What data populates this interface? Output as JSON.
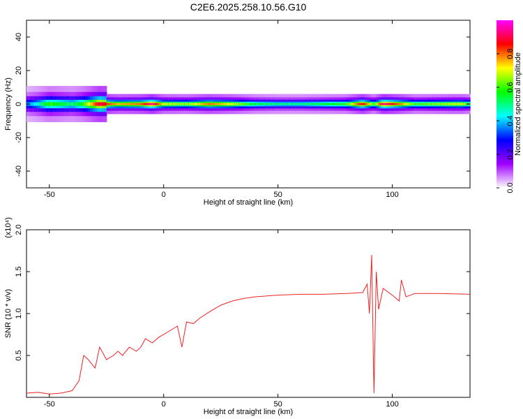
{
  "title": "C2E6.2025.258.10.56.G10",
  "chart_data": [
    {
      "type": "heatmap",
      "xlabel": "Height of straight line (km)",
      "ylabel": "Frequency (Hz)",
      "xlim": [
        -60,
        134
      ],
      "ylim": [
        -50,
        50
      ],
      "xticks": [
        "-50",
        "0",
        "50",
        "100"
      ],
      "yticks": [
        "-40",
        "-20",
        "0",
        "20",
        "40"
      ],
      "colorbar": {
        "label": "Normalized spectral amplitude",
        "range": [
          0,
          1
        ],
        "ticks": [
          "0.0",
          "0.2",
          "0.4",
          "0.6",
          "0.8"
        ],
        "colors": [
          "#ffffff",
          "#a000ff",
          "#0000ff",
          "#00ffff",
          "#00ff00",
          "#ffff00",
          "#ff0000",
          "#ff00ff"
        ]
      },
      "ridge": [
        {
          "x": -60,
          "amp": 0.35
        },
        {
          "x": -55,
          "amp": 0.45
        },
        {
          "x": -50,
          "amp": 0.6
        },
        {
          "x": -45,
          "amp": 0.55
        },
        {
          "x": -40,
          "amp": 0.5
        },
        {
          "x": -35,
          "amp": 0.6
        },
        {
          "x": -28,
          "amp": 0.9
        },
        {
          "x": -20,
          "amp": 0.75
        },
        {
          "x": -10,
          "amp": 0.8
        },
        {
          "x": -5,
          "amp": 0.95
        },
        {
          "x": 0,
          "amp": 0.7
        },
        {
          "x": 10,
          "amp": 0.65
        },
        {
          "x": 20,
          "amp": 0.8
        },
        {
          "x": 30,
          "amp": 0.7
        },
        {
          "x": 40,
          "amp": 0.55
        },
        {
          "x": 50,
          "amp": 0.5
        },
        {
          "x": 60,
          "amp": 0.5
        },
        {
          "x": 70,
          "amp": 0.55
        },
        {
          "x": 80,
          "amp": 0.6
        },
        {
          "x": 87,
          "amp": 0.9
        },
        {
          "x": 92,
          "amp": 0.6
        },
        {
          "x": 96,
          "amp": 0.95
        },
        {
          "x": 103,
          "amp": 0.8
        },
        {
          "x": 110,
          "amp": 0.6
        },
        {
          "x": 120,
          "amp": 0.65
        },
        {
          "x": 130,
          "amp": 0.7
        },
        {
          "x": 134,
          "amp": 0.6
        }
      ]
    },
    {
      "type": "line",
      "xlabel": "Height of straight line (km)",
      "ylabel": "SNR (10 * v/v)",
      "yscale_label": "(x10⁴)",
      "xlim": [
        -60,
        134
      ],
      "ylim": [
        0,
        2.0
      ],
      "xticks": [
        "-50",
        "0",
        "50",
        "100"
      ],
      "yticks": [
        "0.5",
        "1.0",
        "1.5",
        "2.0"
      ],
      "color": "#ee2222",
      "series": [
        {
          "points": [
            [
              -60,
              0.05
            ],
            [
              -55,
              0.06
            ],
            [
              -50,
              0.04
            ],
            [
              -45,
              0.05
            ],
            [
              -40,
              0.08
            ],
            [
              -37,
              0.2
            ],
            [
              -35,
              0.5
            ],
            [
              -33,
              0.45
            ],
            [
              -30,
              0.35
            ],
            [
              -28,
              0.6
            ],
            [
              -25,
              0.45
            ],
            [
              -22,
              0.5
            ],
            [
              -20,
              0.55
            ],
            [
              -18,
              0.5
            ],
            [
              -15,
              0.6
            ],
            [
              -12,
              0.55
            ],
            [
              -10,
              0.6
            ],
            [
              -8,
              0.7
            ],
            [
              -5,
              0.65
            ],
            [
              -2,
              0.72
            ],
            [
              0,
              0.75
            ],
            [
              3,
              0.8
            ],
            [
              6,
              0.85
            ],
            [
              8,
              0.6
            ],
            [
              10,
              0.9
            ],
            [
              13,
              0.88
            ],
            [
              16,
              0.95
            ],
            [
              20,
              1.02
            ],
            [
              25,
              1.1
            ],
            [
              30,
              1.15
            ],
            [
              35,
              1.18
            ],
            [
              40,
              1.2
            ],
            [
              50,
              1.22
            ],
            [
              60,
              1.23
            ],
            [
              70,
              1.23
            ],
            [
              80,
              1.24
            ],
            [
              87,
              1.25
            ],
            [
              89,
              1.35
            ],
            [
              90,
              1.0
            ],
            [
              91,
              1.7
            ],
            [
              92,
              0.05
            ],
            [
              93,
              1.5
            ],
            [
              94,
              1.05
            ],
            [
              96,
              1.3
            ],
            [
              100,
              1.22
            ],
            [
              103,
              1.15
            ],
            [
              104,
              1.4
            ],
            [
              106,
              1.2
            ],
            [
              110,
              1.24
            ],
            [
              120,
              1.24
            ],
            [
              134,
              1.23
            ]
          ]
        }
      ]
    }
  ]
}
